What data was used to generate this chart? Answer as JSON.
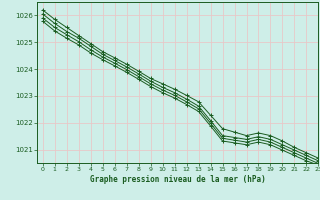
{
  "title": "Graphe pression niveau de la mer (hPa)",
  "background_color": "#ceeee8",
  "grid_color": "#e8c8c8",
  "line_color": "#1a5c20",
  "xlim": [
    -0.5,
    23
  ],
  "ylim": [
    1020.5,
    1026.5
  ],
  "yticks": [
    1021,
    1022,
    1023,
    1024,
    1025,
    1026
  ],
  "xticks": [
    0,
    1,
    2,
    3,
    4,
    5,
    6,
    7,
    8,
    9,
    10,
    11,
    12,
    13,
    14,
    15,
    16,
    17,
    18,
    19,
    20,
    21,
    22,
    23
  ],
  "series": [
    [
      1026.2,
      1025.85,
      1025.55,
      1025.25,
      1024.95,
      1024.65,
      1024.42,
      1024.18,
      1023.92,
      1023.65,
      1023.45,
      1023.25,
      1023.02,
      1022.78,
      1022.28,
      1021.78,
      1021.65,
      1021.52,
      1021.62,
      1021.52,
      1021.32,
      1021.08,
      1020.88,
      1020.68
    ],
    [
      1026.05,
      1025.7,
      1025.4,
      1025.15,
      1024.85,
      1024.55,
      1024.32,
      1024.08,
      1023.82,
      1023.55,
      1023.32,
      1023.12,
      1022.88,
      1022.62,
      1022.08,
      1021.52,
      1021.45,
      1021.38,
      1021.48,
      1021.38,
      1021.18,
      1020.98,
      1020.78,
      1020.58
    ],
    [
      1025.9,
      1025.55,
      1025.28,
      1025.02,
      1024.72,
      1024.45,
      1024.22,
      1023.98,
      1023.72,
      1023.45,
      1023.22,
      1023.02,
      1022.78,
      1022.52,
      1021.98,
      1021.42,
      1021.35,
      1021.28,
      1021.38,
      1021.28,
      1021.08,
      1020.88,
      1020.68,
      1020.48
    ],
    [
      1025.78,
      1025.42,
      1025.15,
      1024.9,
      1024.6,
      1024.35,
      1024.12,
      1023.88,
      1023.62,
      1023.35,
      1023.12,
      1022.92,
      1022.68,
      1022.42,
      1021.88,
      1021.32,
      1021.25,
      1021.18,
      1021.28,
      1021.18,
      1020.98,
      1020.78,
      1020.58,
      1020.42
    ]
  ]
}
